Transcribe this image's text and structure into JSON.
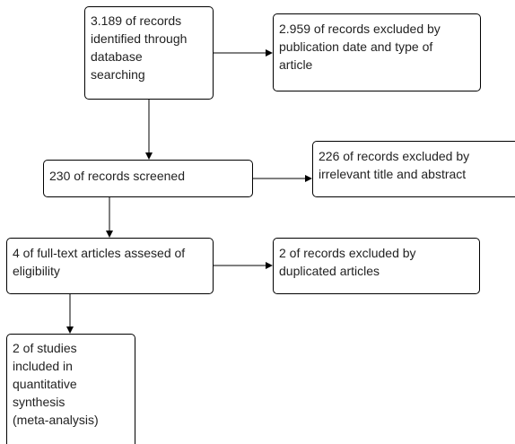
{
  "boxes": {
    "identified": "3.189 of records\nidentified through\ndatabase\nsearching",
    "excluded_by_date": "2.959 of records excluded by\npublication date and type of\narticle",
    "screened": "230 of records screened",
    "excluded_by_title": "226 of records excluded by\nirrelevant title and abstract",
    "full_text_assessed": "4 of full-text articles assesed of\neligibility",
    "excluded_duplicates": "2 of records excluded by\nduplicated articles",
    "included": "2 of studies\nincluded in\nquantitative\nsynthesis\n(meta-analysis)"
  },
  "colors": {
    "border": "#000000",
    "text": "#222222",
    "background": "#ffffff"
  }
}
